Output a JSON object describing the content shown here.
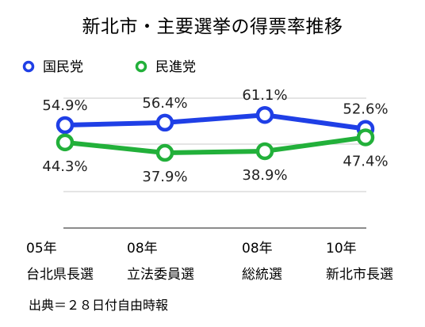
{
  "chart_data": {
    "type": "line",
    "title": "新北市・主要選挙の得票率推移",
    "categories": [
      [
        "05年",
        "台北県長選"
      ],
      [
        "08年",
        "立法委員選"
      ],
      [
        "08年",
        "総統選"
      ],
      [
        "10年",
        "新北市長選"
      ]
    ],
    "series": [
      {
        "name": "国民党",
        "color": "#1f3fe6",
        "values": [
          54.9,
          56.4,
          61.1,
          52.6
        ],
        "labels": [
          "54.9%",
          "56.4%",
          "61.1%",
          "52.6%"
        ]
      },
      {
        "name": "民進党",
        "color": "#22b03a",
        "values": [
          44.3,
          37.9,
          38.9,
          47.4
        ],
        "labels": [
          "44.3%",
          "37.9%",
          "38.9%",
          "47.4%"
        ]
      }
    ],
    "legend_position": "top-left",
    "grid": true,
    "source": "出典＝２８日付自由時報"
  }
}
